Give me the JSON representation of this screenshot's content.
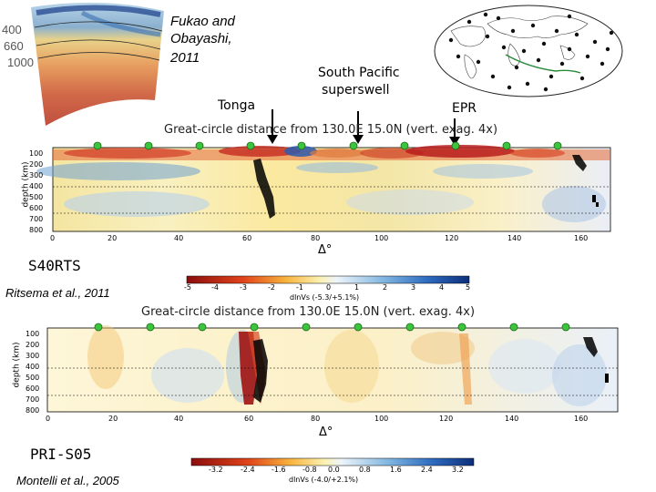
{
  "left_inset": {
    "depth_labels": [
      "400",
      "660",
      "1000"
    ]
  },
  "citation_top": {
    "authors": "Fukao and",
    "authors2": "Obayashi,",
    "year": "2011"
  },
  "map_labels": {
    "tonga": "Tonga",
    "south_pacific": "South Pacific",
    "superswell": "superswell",
    "epr": "EPR"
  },
  "panel1": {
    "title": "Great-circle distance from 130.0E 15.0N (vert. exag. 4x)",
    "model": "S40RTS",
    "citation": "Ritsema et al., 2011",
    "ylabel": "depth (km)",
    "xlabel": "Δ°",
    "y_ticks": [
      "100",
      "200",
      "300",
      "400",
      "500",
      "600",
      "700",
      "800"
    ],
    "x_ticks": [
      "0",
      "20",
      "40",
      "60",
      "80",
      "100",
      "120",
      "140",
      "160"
    ],
    "colorbar_ticks": [
      "-5",
      "-4",
      "-3",
      "-2",
      "-1",
      "0",
      "1",
      "2",
      "3",
      "4",
      "5"
    ],
    "colorbar_label": "dlnVs (-5.3/+5.1%)"
  },
  "panel2": {
    "title": "Great-circle distance from 130.0E 15.0N (vert. exag. 4x)",
    "model": "PRI-S05",
    "citation": "Montelli et al., 2005",
    "ylabel": "depth (km)",
    "xlabel": "Δ°",
    "y_ticks": [
      "100",
      "200",
      "300",
      "400",
      "500",
      "600",
      "700",
      "800"
    ],
    "x_ticks": [
      "0",
      "20",
      "40",
      "60",
      "80",
      "100",
      "120",
      "140",
      "160"
    ],
    "colorbar_ticks": [
      "-3.2",
      "-2.4",
      "-1.6",
      "-0.8",
      "0.0",
      "0.8",
      "1.6",
      "2.4",
      "3.2"
    ],
    "colorbar_label": "dlnVs (-4.0/+2.1%)"
  },
  "colors": {
    "red": "#b2182b",
    "blue": "#2166ac",
    "green": "#3cc43c"
  }
}
